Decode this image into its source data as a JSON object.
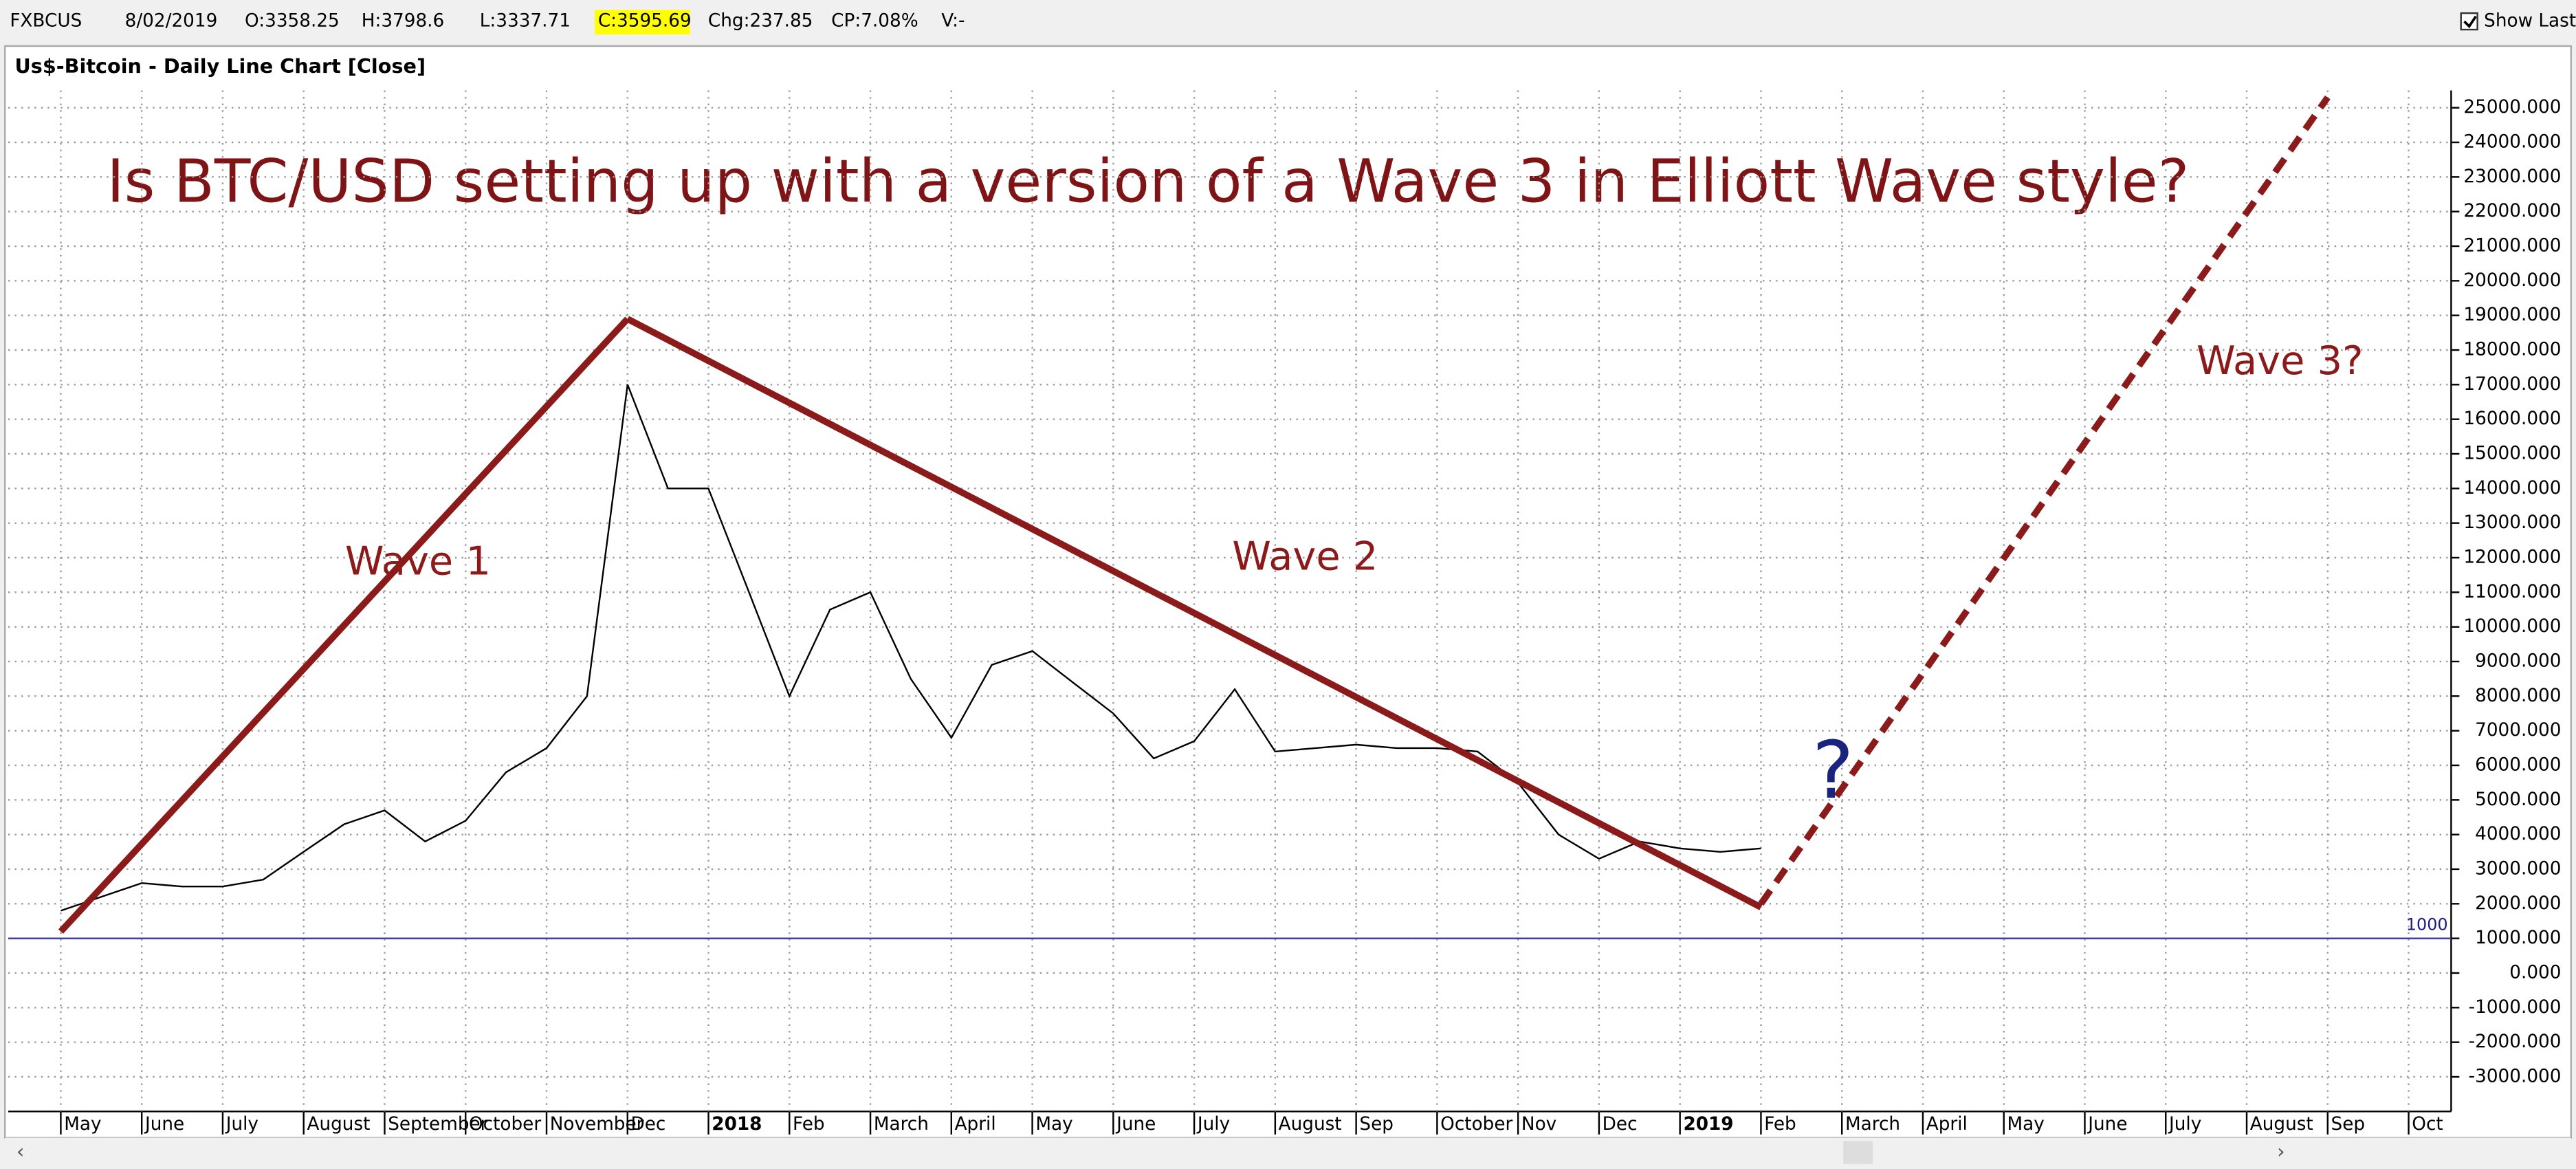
{
  "toolbar": {
    "symbol": "FXBCUS",
    "date": "8/02/2019",
    "open": "O:3358.25",
    "high": "H:3798.6",
    "low": "L:3337.71",
    "close": "C:3595.69",
    "change": "Chg:237.85",
    "change_percent": "CP:7.08%",
    "volume": "V:-",
    "show_last": "Show Last"
  },
  "chart_data": {
    "type": "line",
    "caption": "Us$-Bitcoin - Daily Line Chart [Close]",
    "title": "Is BTC/USD setting up with a version of a Wave 3 in Elliott Wave style?",
    "categories": [
      "May",
      null,
      "June",
      null,
      "July",
      null,
      "August",
      null,
      "September",
      null,
      "October",
      null,
      "November",
      null,
      "Dec",
      null,
      "2018",
      null,
      "Feb",
      null,
      "March",
      null,
      "April",
      null,
      "May",
      null,
      "June",
      null,
      "July",
      null,
      "August",
      null,
      "Sep",
      null,
      "October",
      null,
      "Nov",
      null,
      "Dec",
      null,
      "2019",
      null,
      "Feb",
      null,
      "March",
      null,
      "April",
      null,
      "May",
      null,
      "June",
      null,
      "July",
      null,
      "August",
      null,
      "Sep",
      null,
      "Oct",
      null
    ],
    "series": [
      {
        "name": "Close",
        "color": "#000000",
        "values": [
          1800,
          2200,
          2600,
          2500,
          2500,
          2700,
          3500,
          4300,
          4700,
          3800,
          4400,
          5800,
          6500,
          8000,
          17000,
          14000,
          14000,
          11000,
          8000,
          10500,
          11000,
          8500,
          6800,
          8900,
          9300,
          8400,
          7500,
          6200,
          6700,
          8200,
          6400,
          6500,
          6600,
          6500,
          6500,
          6400,
          5500,
          4000,
          3300,
          3800,
          3600,
          3500,
          3600,
          null,
          null,
          null,
          null,
          null,
          null,
          null,
          null,
          null,
          null,
          null,
          null,
          null,
          null,
          null,
          null,
          null
        ]
      }
    ],
    "trendlines": [
      {
        "name": "Wave 1",
        "x": [
          "2017-05",
          "2017-12"
        ],
        "values": [
          1200,
          18900
        ],
        "color": "#8b1a1a",
        "dashed": false
      },
      {
        "name": "Wave 2",
        "x": [
          "2017-12",
          "2019-02"
        ],
        "values": [
          18900,
          1900
        ],
        "color": "#8b1a1a",
        "dashed": false
      },
      {
        "name": "Wave 3?",
        "x": [
          "2019-02",
          "2019-09"
        ],
        "values": [
          2000,
          25300
        ],
        "color": "#8b1a1a",
        "dashed": true
      }
    ],
    "question": "?",
    "reference_line": 1000,
    "ylim": [
      -4000,
      25500
    ],
    "yticks": [
      {
        "value": -3000,
        "label": "-3000.000"
      },
      {
        "value": -2000,
        "label": "-2000.000"
      },
      {
        "value": -1000,
        "label": "-1000.000"
      },
      {
        "value": 0,
        "label": "0.000"
      },
      {
        "value": 1000,
        "label": "1000.000"
      },
      {
        "value": 2000,
        "label": "2000.000"
      },
      {
        "value": 3000,
        "label": "3000.000"
      },
      {
        "value": 4000,
        "label": "4000.000"
      },
      {
        "value": 5000,
        "label": "5000.000"
      },
      {
        "value": 6000,
        "label": "6000.000"
      },
      {
        "value": 7000,
        "label": "7000.000"
      },
      {
        "value": 8000,
        "label": "8000.000"
      },
      {
        "value": 9000,
        "label": "9000.000"
      },
      {
        "value": 10000,
        "label": "10000.000"
      },
      {
        "value": 11000,
        "label": "11000.000"
      },
      {
        "value": 12000,
        "label": "12000.000"
      },
      {
        "value": 13000,
        "label": "13000.000"
      },
      {
        "value": 14000,
        "label": "14000.000"
      },
      {
        "value": 15000,
        "label": "15000.000"
      },
      {
        "value": 16000,
        "label": "16000.000"
      },
      {
        "value": 17000,
        "label": "17000.000"
      },
      {
        "value": 18000,
        "label": "18000.000"
      },
      {
        "value": 19000,
        "label": "19000.000"
      },
      {
        "value": 20000,
        "label": "20000.000"
      },
      {
        "value": 21000,
        "label": "21000.000"
      },
      {
        "value": 22000,
        "label": "22000.000"
      },
      {
        "value": 23000,
        "label": "23000.000"
      },
      {
        "value": 24000,
        "label": "24000.000"
      },
      {
        "value": 25000,
        "label": "25000.000"
      }
    ],
    "grid": true
  }
}
